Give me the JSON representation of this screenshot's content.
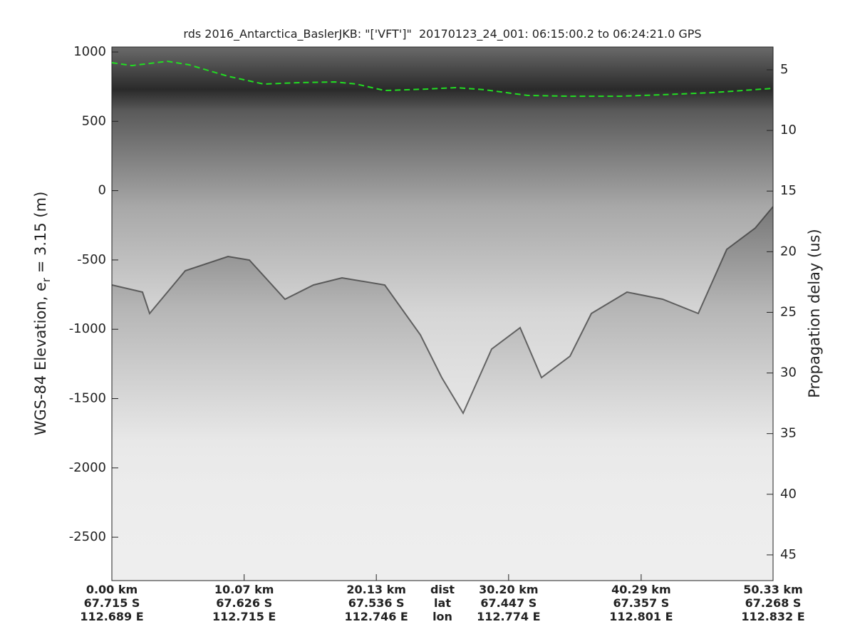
{
  "chart_data": {
    "type": "line",
    "title": "rds 2016_Antarctica_BaslerJKB: \"['VFT']\"  20170123_24_001: 06:15:00.2 to 06:24:21.0 GPS",
    "ylabel": "WGS-84 Elevation, e",
    "ylabel_subscript": "r",
    "ylabel_rest": " = 3.15 (m)",
    "y2label": "Propagation delay (us)",
    "xlim": [
      0,
      50.33
    ],
    "xticks": [
      {
        "value": 0,
        "label": "0.00 km"
      },
      {
        "value": 10.07,
        "label": "10.07 km"
      },
      {
        "value": 20.13,
        "label": "20.13 km"
      },
      {
        "value": 30.2,
        "label": "30.20 km"
      },
      {
        "value": 40.29,
        "label": "40.29 km"
      },
      {
        "value": 50.33,
        "label": "50.33 km"
      }
    ],
    "xtick_lat": [
      "67.715 S",
      "67.626 S",
      "67.536 S",
      "67.447 S",
      "67.357 S",
      "67.268 S"
    ],
    "xtick_lon": [
      "112.689 E",
      "112.715 E",
      "112.746 E",
      "112.774 E",
      "112.801 E",
      "112.832 E"
    ],
    "xtick_row_names": [
      "dist",
      "lat",
      "lon"
    ],
    "ylim": [
      -2813,
      1036
    ],
    "yticks": [
      -2500,
      -2000,
      -1500,
      -1000,
      -500,
      0,
      500,
      1000
    ],
    "y2lim": [
      47.12,
      3.12
    ],
    "y2ticks": [
      5,
      10,
      15,
      20,
      25,
      30,
      35,
      40,
      45
    ],
    "series": [
      {
        "color": "#22dd22",
        "x": [
          0,
          1.52,
          4.23,
          5.86,
          8.84,
          11.55,
          14.26,
          16.98,
          18.6,
          20.77,
          24.03,
          26.2,
          28.36,
          31.62,
          34.87,
          38.67,
          41.92,
          45.72,
          50.33
        ],
        "values": [
          923,
          902,
          933,
          908,
          825,
          769,
          779,
          784,
          769,
          722,
          733,
          743,
          728,
          687,
          681,
          681,
          692,
          707,
          738
        ]
      }
    ]
  }
}
